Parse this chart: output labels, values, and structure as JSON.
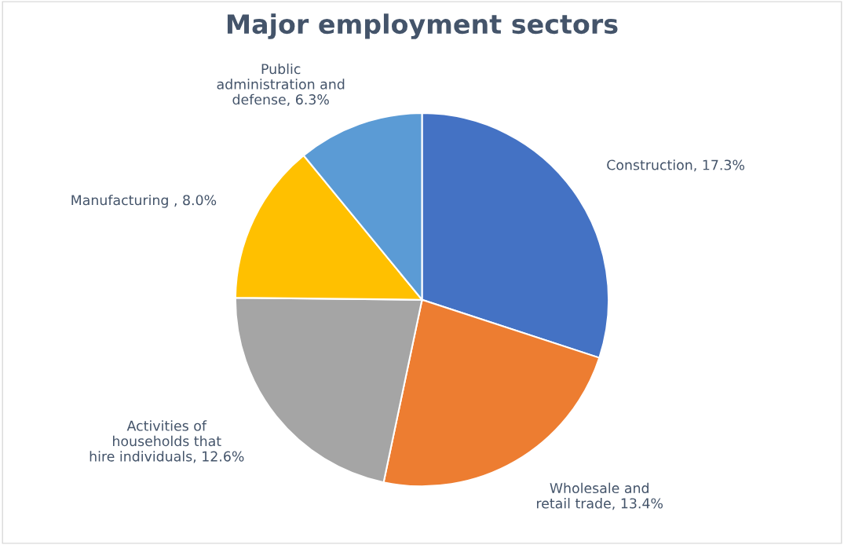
{
  "chart_data": {
    "type": "pie",
    "title": "Major employment sectors",
    "categories": [
      "Construction",
      "Wholesale and\nretail trade",
      "Activities of\nhouseholds that\nhire individuals",
      "Manufacturing ",
      "Public\nadministration and\ndefense"
    ],
    "values": [
      17.3,
      13.4,
      12.6,
      8.0,
      6.3
    ],
    "value_labels": [
      "17.3%",
      "13.4%",
      "12.6%",
      "8.0%",
      "6.3%"
    ],
    "colors": [
      "#4472c4",
      "#ed7d31",
      "#a5a5a5",
      "#ffc000",
      "#5b9bd5"
    ],
    "legend": false
  }
}
